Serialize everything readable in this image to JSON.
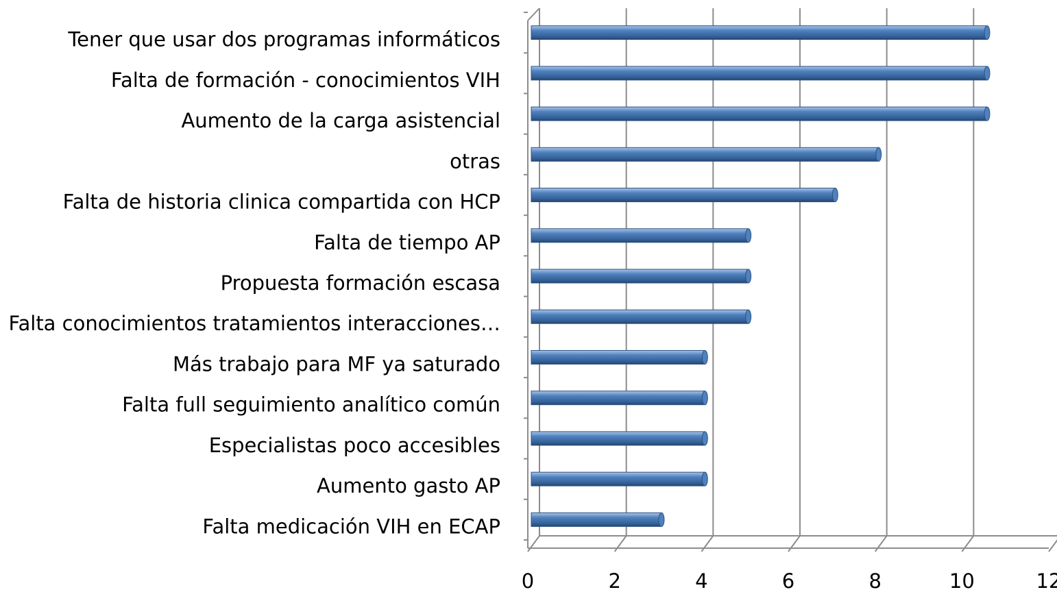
{
  "chart_data": {
    "type": "bar",
    "orientation": "horizontal",
    "style": "3d-cylinder",
    "categories": [
      "Tener que usar dos programas informáticos",
      "Falta de formación - conocimientos VIH",
      "Aumento de la carga asistencial",
      "otras",
      "Falta de historia clinica compartida con HCP",
      "Falta de tiempo AP",
      "Propuesta formación escasa",
      "Falta conocimientos tratamientos interacciones…",
      "Más trabajo para MF ya saturado",
      "Falta full seguimiento analítico común",
      "Especialistas poco accesibles",
      "Aumento gasto AP",
      "Falta medicación VIH en ECAP"
    ],
    "values": [
      10.5,
      10.5,
      10.5,
      8,
      7,
      5,
      5,
      5,
      4,
      4,
      4,
      4,
      3
    ],
    "color": "#4f81bd",
    "xlim": [
      0,
      12
    ],
    "xticks": [
      0,
      2,
      4,
      6,
      8,
      10,
      12
    ],
    "grid": true
  }
}
